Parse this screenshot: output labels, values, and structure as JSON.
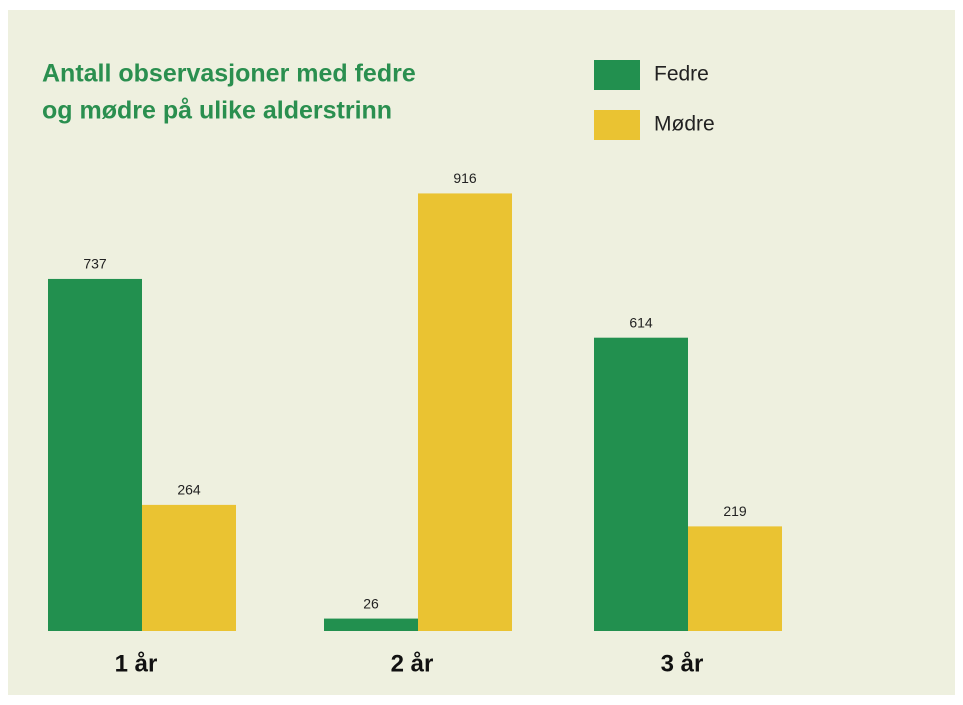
{
  "chart_data": {
    "type": "bar",
    "title_lines": [
      "Antall observasjoner med fedre",
      "og mødre på ulike alderstrinn"
    ],
    "categories": [
      "1 år",
      "2 år",
      "3 år"
    ],
    "series": [
      {
        "name": "Fedre",
        "color": "#22904f",
        "values": [
          737,
          26,
          614
        ]
      },
      {
        "name": "Mødre",
        "color": "#eac332",
        "values": [
          264,
          916,
          219
        ]
      }
    ],
    "legend": "top-right"
  }
}
